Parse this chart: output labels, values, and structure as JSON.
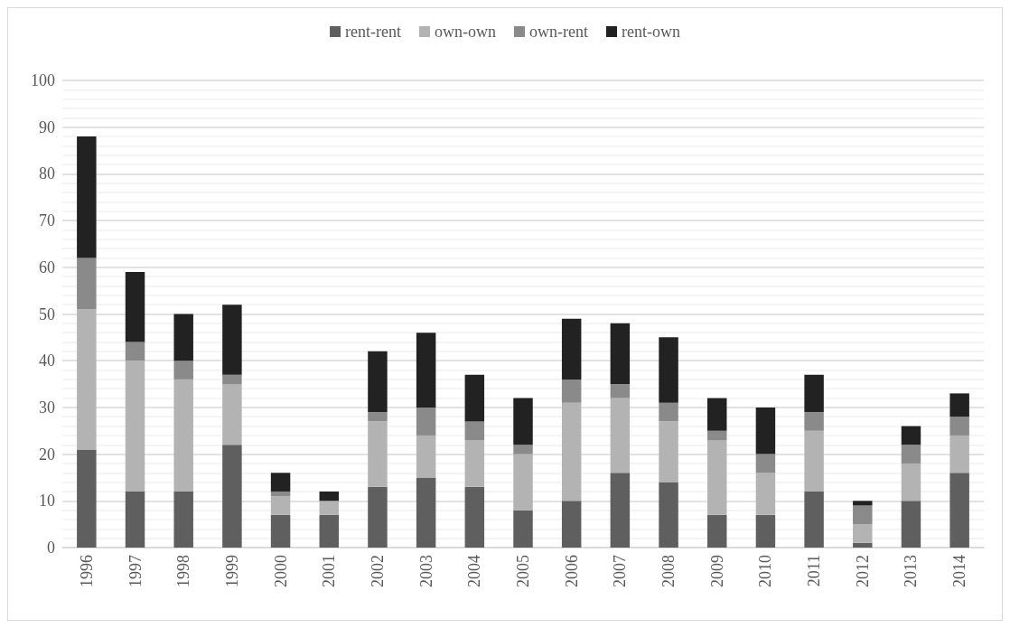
{
  "chart_data": {
    "type": "bar",
    "stacked": true,
    "categories": [
      "1996",
      "1997",
      "1998",
      "1999",
      "2000",
      "2001",
      "2002",
      "2003",
      "2004",
      "2005",
      "2006",
      "2007",
      "2008",
      "2009",
      "2010",
      "2011",
      "2012",
      "2013",
      "2014"
    ],
    "series": [
      {
        "name": "rent-rent",
        "color": "#5f5f5f",
        "values": [
          21,
          12,
          12,
          22,
          7,
          7,
          13,
          15,
          13,
          8,
          10,
          16,
          14,
          7,
          7,
          12,
          1,
          10,
          16
        ]
      },
      {
        "name": "own-own",
        "color": "#b3b3b3",
        "values": [
          30,
          28,
          24,
          13,
          4,
          3,
          14,
          9,
          10,
          12,
          21,
          16,
          13,
          16,
          9,
          13,
          4,
          8,
          8
        ]
      },
      {
        "name": "own-rent",
        "color": "#8a8a8a",
        "values": [
          11,
          4,
          4,
          2,
          1,
          0,
          2,
          6,
          4,
          2,
          5,
          3,
          4,
          2,
          4,
          4,
          4,
          4,
          4
        ]
      },
      {
        "name": "rent-own",
        "color": "#222222",
        "values": [
          26,
          15,
          10,
          15,
          4,
          2,
          13,
          16,
          10,
          10,
          13,
          13,
          14,
          7,
          10,
          8,
          1,
          4,
          5
        ]
      }
    ],
    "ylim": [
      0,
      100
    ],
    "yticks": [
      0,
      10,
      20,
      30,
      40,
      50,
      60,
      70,
      80,
      90,
      100
    ],
    "grid": "y",
    "legend": "top"
  }
}
